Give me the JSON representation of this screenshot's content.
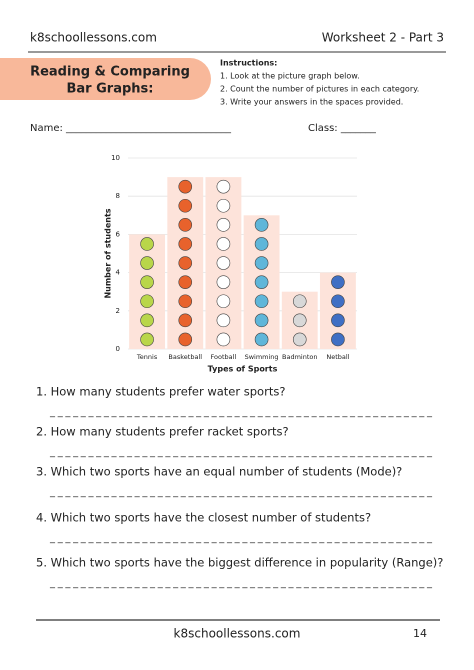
{
  "header": {
    "site": "k8schoollessons.com",
    "worksheet": "Worksheet 2 - Part 3"
  },
  "title": [
    "Reading & Comparing",
    "Bar Graphs:"
  ],
  "instructions": {
    "label": "Instructions:",
    "items": [
      "1. Look at the picture graph below.",
      "2. Count the number of pictures in each category.",
      "3. Write your answers in the spaces provided."
    ]
  },
  "name_field": "Name: _________________________________",
  "class_field": "Class: _______",
  "chart_data": {
    "type": "bar",
    "x_label": "Types of Sports",
    "y_label": "Number of students",
    "categories": [
      "Tennis",
      "Basketball",
      "Football",
      "Swimming",
      "Badminton",
      "Netball"
    ],
    "values": [
      6,
      9,
      9,
      7,
      3,
      4
    ],
    "color": "#fde3da",
    "icon_colors": [
      "#b9d64a",
      "#e8622c",
      "#ffffff",
      "#5fb6d9",
      "#d8d8d8",
      "#3f6fc4"
    ],
    "ylim": [
      0,
      10
    ],
    "yticks": [
      0,
      2,
      4,
      6,
      8,
      10
    ],
    "grid": true
  },
  "questions": [
    {
      "text": "1.  How many students prefer water sports?",
      "answer": "__________________________________________________"
    },
    {
      "text": "2. How many students prefer racket sports?",
      "answer": "__________________________________________________"
    },
    {
      "text": "3. Which two sports have an equal number of students (Mode)?",
      "answer": "__________________________________________________"
    },
    {
      "text": "4. Which two sports have the closest number of students?",
      "answer": "__________________________________________________"
    },
    {
      "text": "5. Which two sports have the biggest difference in popularity (Range)?",
      "answer": "__________________________________________________"
    }
  ],
  "footer": {
    "site": "k8schoollessons.com",
    "page": "14"
  }
}
